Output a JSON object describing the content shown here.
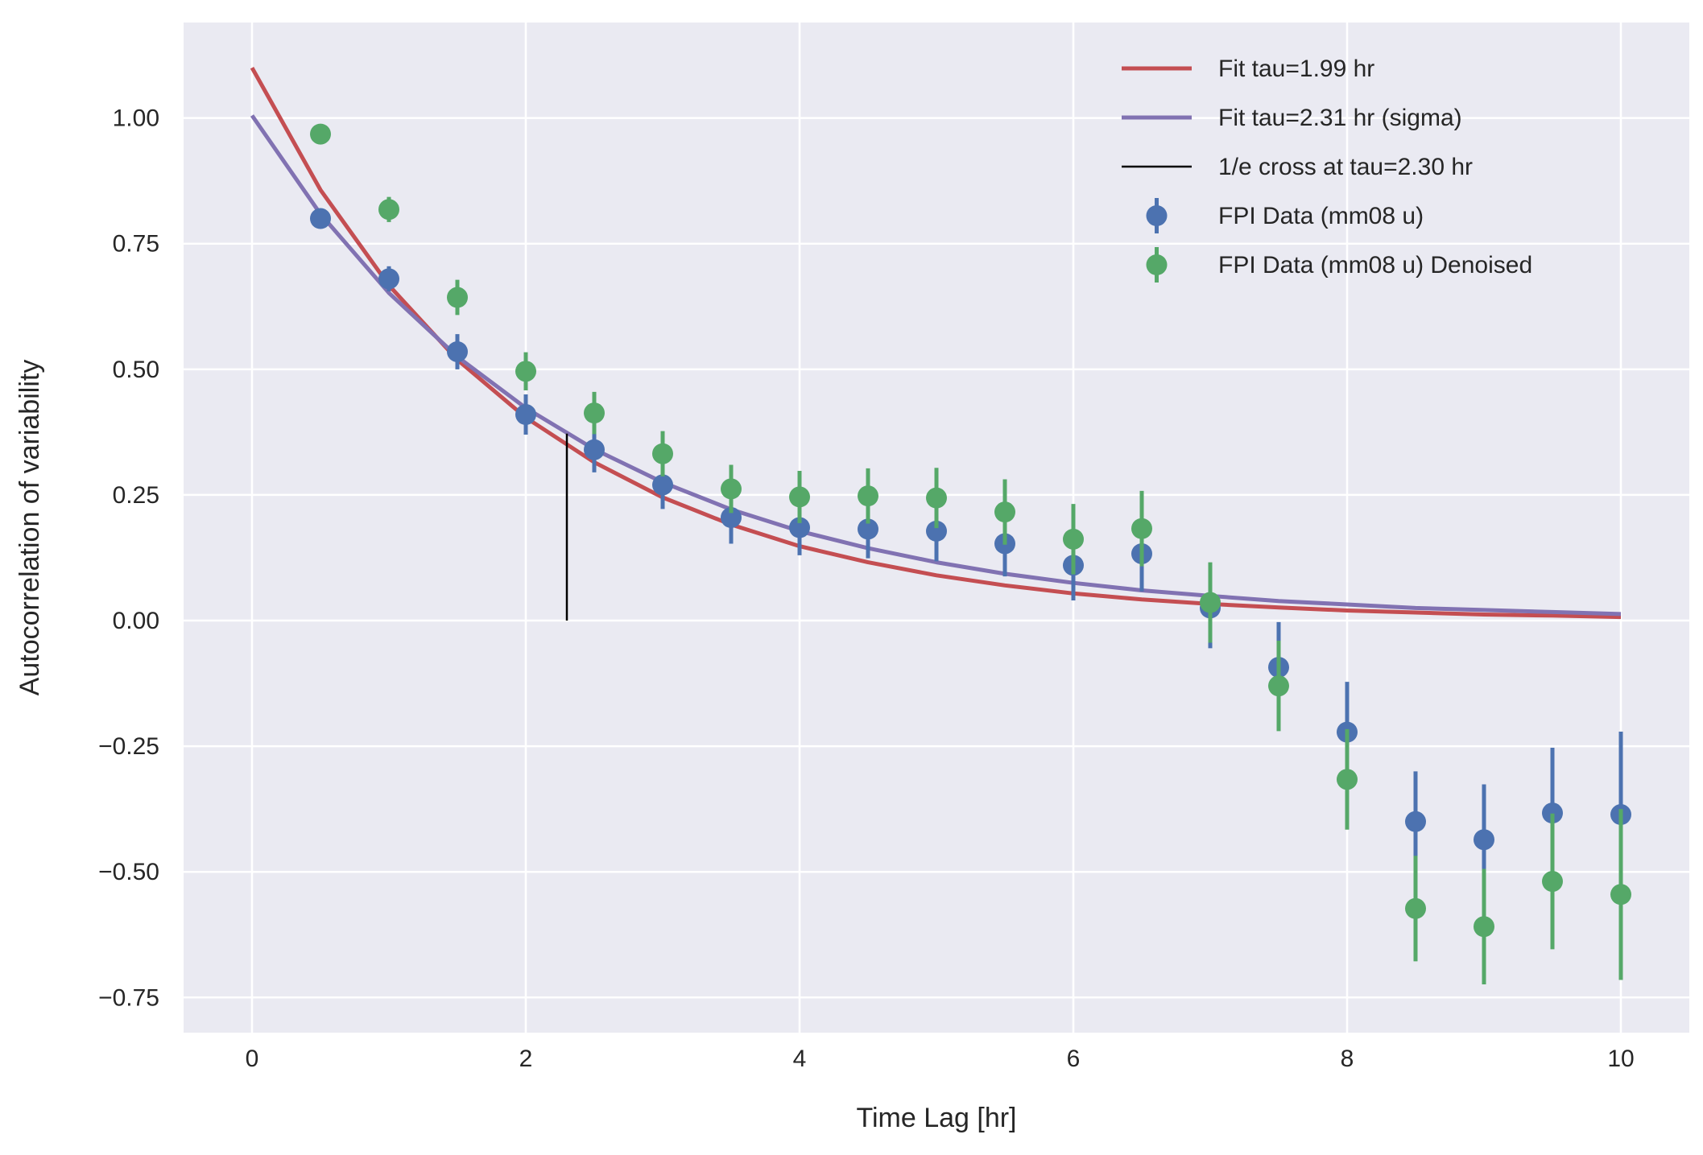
{
  "chart_data": {
    "type": "scatter",
    "xlabel": "Time Lag [hr]",
    "ylabel": "Autocorrelation of variability",
    "xlim": [
      -0.5,
      10.5
    ],
    "ylim": [
      -0.82,
      1.19
    ],
    "xticks": [
      0,
      2,
      4,
      6,
      8,
      10
    ],
    "xtick_labels": [
      "0",
      "2",
      "4",
      "6",
      "8",
      "10"
    ],
    "yticks": [
      -0.75,
      -0.5,
      -0.25,
      0.0,
      0.25,
      0.5,
      0.75,
      1.0
    ],
    "ytick_labels": [
      "−0.75",
      "−0.50",
      "−0.25",
      "0.00",
      "0.25",
      "0.50",
      "0.75",
      "1.00"
    ],
    "grid": true,
    "legend_position": "top-right",
    "background": "#EAEAF2",
    "lines": [
      {
        "name": "Fit tau=1.99 hr",
        "color": "#C44E52",
        "x": [
          0,
          0.5,
          1,
          1.5,
          2,
          2.5,
          3,
          3.5,
          4,
          4.5,
          5,
          5.5,
          6,
          6.5,
          7,
          7.5,
          8,
          8.5,
          9,
          9.5,
          10
        ],
        "y": [
          1.1,
          0.857,
          0.667,
          0.519,
          0.404,
          0.315,
          0.245,
          0.191,
          0.148,
          0.116,
          0.09,
          0.07,
          0.054,
          0.042,
          0.033,
          0.026,
          0.02,
          0.016,
          0.012,
          0.01,
          0.007
        ]
      },
      {
        "name": "Fit tau=2.31 hr (sigma)",
        "color": "#8172B2",
        "x": [
          0,
          0.5,
          1,
          1.5,
          2,
          2.5,
          3,
          3.5,
          4,
          4.5,
          5,
          5.5,
          6,
          6.5,
          7,
          7.5,
          8,
          8.5,
          9,
          9.5,
          10
        ],
        "y": [
          1.005,
          0.809,
          0.652,
          0.525,
          0.423,
          0.341,
          0.275,
          0.221,
          0.178,
          0.144,
          0.116,
          0.093,
          0.075,
          0.06,
          0.049,
          0.039,
          0.032,
          0.025,
          0.021,
          0.017,
          0.013
        ]
      }
    ],
    "vline": {
      "name": "1/e cross at tau=2.30 hr",
      "color": "#000000",
      "x": 2.3,
      "y0": 0.0,
      "y1": 0.372
    },
    "series": [
      {
        "name": "FPI Data (mm08 u)",
        "color": "#4C72B0",
        "x": [
          0.5,
          1,
          1.5,
          2,
          2.5,
          3,
          3.5,
          4,
          4.5,
          5,
          5.5,
          6,
          6.5,
          7,
          7.5,
          8,
          8.5,
          9,
          9.5,
          10
        ],
        "y": [
          0.8,
          0.68,
          0.535,
          0.41,
          0.34,
          0.27,
          0.205,
          0.185,
          0.182,
          0.178,
          0.153,
          0.11,
          0.133,
          0.025,
          -0.093,
          -0.222,
          -0.4,
          -0.436,
          -0.383,
          -0.386
        ],
        "err": [
          0.015,
          0.025,
          0.035,
          0.04,
          0.045,
          0.048,
          0.052,
          0.055,
          0.058,
          0.06,
          0.065,
          0.07,
          0.075,
          0.08,
          0.09,
          0.1,
          0.1,
          0.11,
          0.13,
          0.165
        ]
      },
      {
        "name": "FPI Data (mm08 u) Denoised",
        "color": "#55A868",
        "x": [
          0.5,
          1,
          1.5,
          2,
          2.5,
          3,
          3.5,
          4,
          4.5,
          5,
          5.5,
          6,
          6.5,
          7,
          7.5,
          8,
          8.5,
          9,
          9.5,
          10
        ],
        "y": [
          0.968,
          0.818,
          0.643,
          0.496,
          0.413,
          0.332,
          0.262,
          0.246,
          0.248,
          0.244,
          0.216,
          0.162,
          0.183,
          0.036,
          -0.13,
          -0.316,
          -0.573,
          -0.609,
          -0.519,
          -0.545
        ],
        "err": [
          0.012,
          0.025,
          0.035,
          0.038,
          0.042,
          0.045,
          0.048,
          0.052,
          0.055,
          0.06,
          0.065,
          0.07,
          0.075,
          0.08,
          0.09,
          0.1,
          0.105,
          0.115,
          0.135,
          0.17
        ]
      }
    ]
  }
}
